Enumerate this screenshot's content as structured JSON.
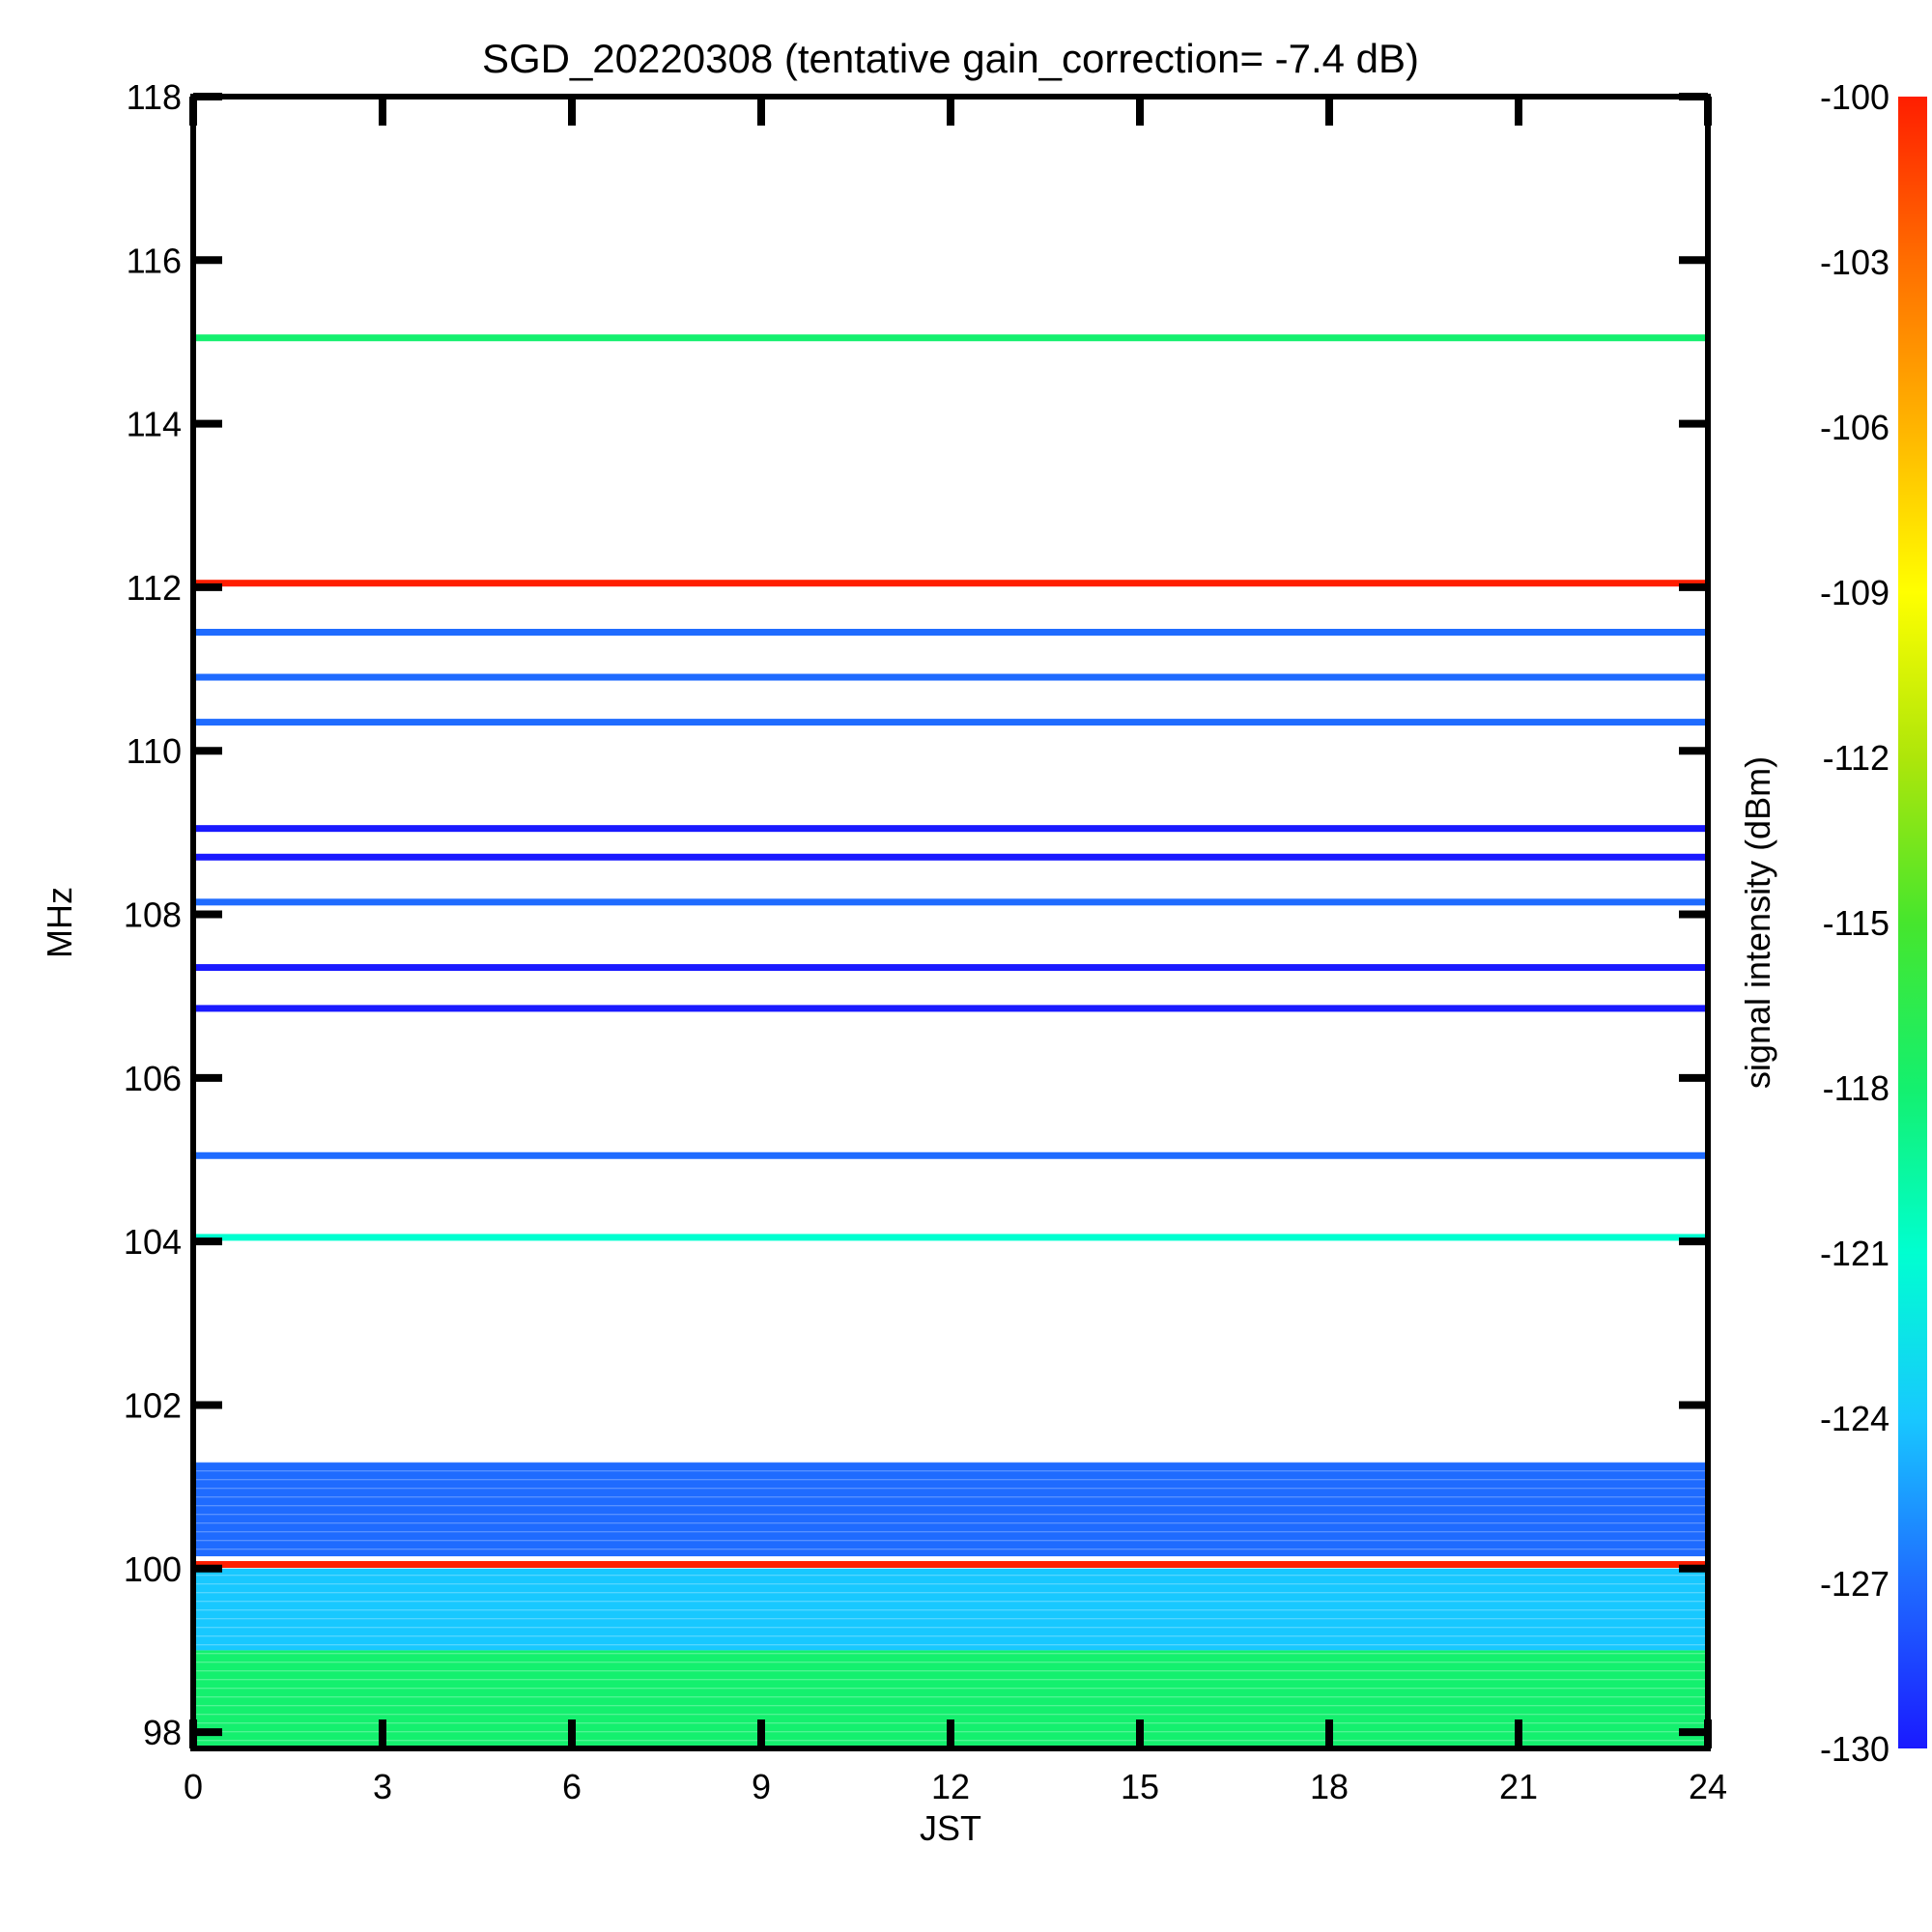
{
  "chart_data": {
    "type": "heatmap",
    "title": "SGD_20220308 (tentative gain_correction= -7.4 dB)",
    "xlabel": "JST",
    "ylabel": "MHz",
    "colorbar_label": "signal intensity (dBm)",
    "xlim": [
      0,
      24
    ],
    "ylim": [
      97.8,
      118
    ],
    "x_ticks": [
      "0",
      "3",
      "6",
      "9",
      "12",
      "15",
      "18",
      "21",
      "24"
    ],
    "y_ticks": [
      "98",
      "100",
      "102",
      "104",
      "106",
      "108",
      "110",
      "112",
      "114",
      "116",
      "118"
    ],
    "colorbar_range": [
      -130,
      -100
    ],
    "colorbar_ticks": [
      "-100",
      "-103",
      "-106",
      "-109",
      "-112",
      "-115",
      "-118",
      "-121",
      "-124",
      "-127",
      "-130"
    ],
    "colormap": [
      "#1a1aff",
      "#1f6bff",
      "#18c8ff",
      "#00ffd0",
      "#14f06e",
      "#46e62d",
      "#aee60a",
      "#ffff00",
      "#ffb400",
      "#ff6e00",
      "#ff1e00"
    ],
    "continuous_bands": [
      {
        "freq_mhz": 115.05,
        "dbm": -117
      },
      {
        "freq_mhz": 112.05,
        "dbm": -100
      },
      {
        "freq_mhz": 111.45,
        "dbm": -128
      },
      {
        "freq_mhz": 110.9,
        "dbm": -127
      },
      {
        "freq_mhz": 110.35,
        "dbm": -128
      },
      {
        "freq_mhz": 109.05,
        "dbm": -129
      },
      {
        "freq_mhz": 108.7,
        "dbm": -129
      },
      {
        "freq_mhz": 108.15,
        "dbm": -128
      },
      {
        "freq_mhz": 107.35,
        "dbm": -129
      },
      {
        "freq_mhz": 106.85,
        "dbm": -129
      },
      {
        "freq_mhz": 105.05,
        "dbm": -127
      },
      {
        "freq_mhz": 104.05,
        "dbm": -122
      },
      {
        "freq_mhz": 100.05,
        "dbm": -100
      }
    ],
    "noise_floor": [
      {
        "freq_mhz_from": 100.15,
        "freq_mhz_to": 101.3,
        "dbm": -128
      },
      {
        "freq_mhz_from": 99.0,
        "freq_mhz_to": 100.0,
        "dbm": -124
      },
      {
        "freq_mhz_from": 97.8,
        "freq_mhz_to": 99.0,
        "dbm": -119
      }
    ],
    "grid": false
  }
}
